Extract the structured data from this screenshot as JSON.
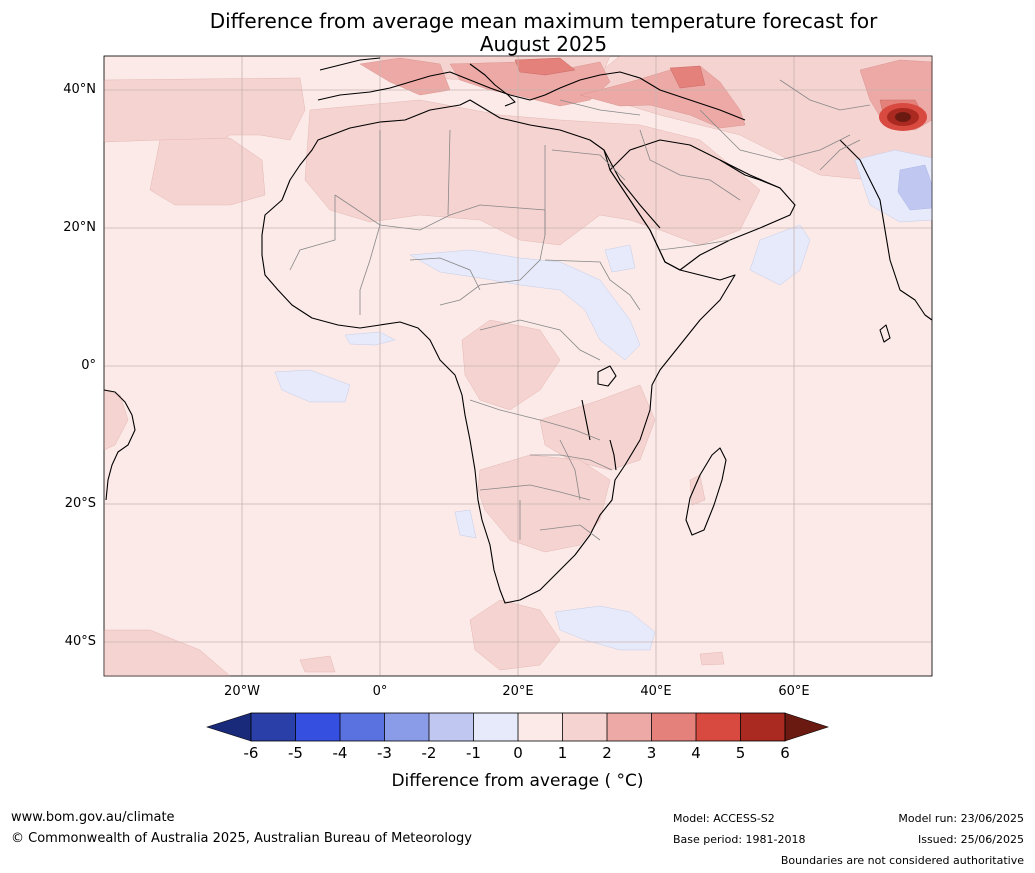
{
  "header": {
    "title_line1": "Difference from average mean maximum temperature forecast for",
    "title_line2": "August 2025"
  },
  "map": {
    "region": "Africa",
    "lat_labels": [
      "40°N",
      "20°N",
      "0°",
      "20°S",
      "40°S"
    ],
    "lon_labels": [
      "20°W",
      "0°",
      "20°E",
      "40°E",
      "60°E"
    ],
    "colors": {
      "cold_6": "#1a2a7a",
      "cold_5": "#2a3fa8",
      "cold_4": "#3550e0",
      "cold_3": "#5a72e0",
      "cold_2": "#8a9ce8",
      "cold_1": "#c0c8f2",
      "cold_0": "#e6eafa",
      "warm_0": "#fbeae8",
      "warm_1": "#f5d3d0",
      "warm_2": "#eca9a5",
      "warm_3": "#e4817b",
      "warm_4": "#d84a40",
      "warm_5": "#aa2a22",
      "warm_6": "#6b1a12",
      "grid": "#c8b4b2",
      "coast": "#000000",
      "borders": "#888888"
    }
  },
  "colorbar": {
    "ticks": [
      "-6",
      "-5",
      "-4",
      "-3",
      "-2",
      "-1",
      "0",
      "1",
      "2",
      "3",
      "4",
      "5",
      "6"
    ],
    "label": "Difference from average ( °C)"
  },
  "footer": {
    "url": "www.bom.gov.au/climate",
    "copyright": "© Commonwealth of Australia 2025, Australian Bureau of Meteorology",
    "model": "Model: ACCESS-S2",
    "base_period": "Base period: 1981-2018",
    "model_run": "Model run: 23/06/2025",
    "issued": "Issued: 25/06/2025",
    "disclaimer": "Boundaries are not considered authoritative"
  }
}
